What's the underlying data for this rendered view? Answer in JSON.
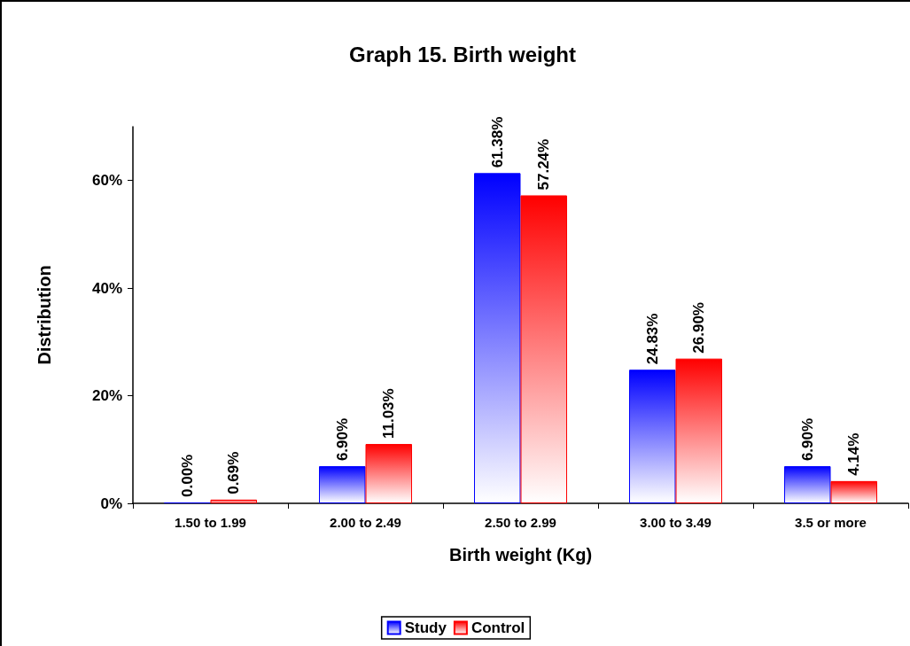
{
  "chart_data": {
    "type": "bar",
    "title": "Graph 15. Birth weight",
    "xlabel": "Birth weight (Kg)",
    "ylabel": "Distribution",
    "categories": [
      "1.50 to 1.99",
      "2.00 to 2.49",
      "2.50 to 2.99",
      "3.00 to 3.49",
      "3.5 or more"
    ],
    "series": [
      {
        "name": "Study",
        "color": "#0000ff",
        "values": [
          0,
          6.9,
          61.38,
          24.83,
          6.9
        ],
        "value_labels": [
          "0.00%",
          "6.90%",
          "61.38%",
          "24.83%",
          "6.90%"
        ]
      },
      {
        "name": "Control",
        "color": "#ff0000",
        "values": [
          0.69,
          11.03,
          57.24,
          26.9,
          4.14
        ],
        "value_labels": [
          "0.69%",
          "11.03%",
          "57.24%",
          "26.90%",
          "4.14%"
        ]
      }
    ],
    "ylim": [
      0,
      70
    ],
    "yticks": [
      {
        "value": 0,
        "label": "0%"
      },
      {
        "value": 20,
        "label": "20%"
      },
      {
        "value": 40,
        "label": "40%"
      },
      {
        "value": 60,
        "label": "60%"
      }
    ],
    "grid": false,
    "legend": "bottom"
  }
}
